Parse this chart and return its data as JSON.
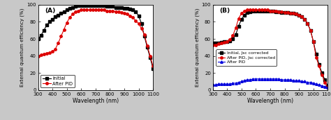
{
  "panel_A": {
    "label": "(A)",
    "initial_x": [
      300,
      320,
      340,
      360,
      380,
      400,
      420,
      440,
      460,
      480,
      500,
      520,
      540,
      560,
      580,
      600,
      620,
      640,
      660,
      680,
      700,
      720,
      740,
      760,
      780,
      800,
      820,
      840,
      860,
      880,
      900,
      920,
      940,
      960,
      980,
      1000,
      1020,
      1040,
      1060,
      1080,
      1100
    ],
    "initial_y": [
      60,
      64,
      70,
      76,
      80,
      83,
      86,
      88,
      90,
      92,
      94,
      96,
      97,
      98,
      99,
      99,
      99,
      99,
      99,
      99,
      99,
      99,
      99,
      99,
      98,
      98,
      98,
      97,
      97,
      97,
      96,
      96,
      95,
      94,
      92,
      87,
      78,
      63,
      50,
      38,
      25
    ],
    "after_pid_x": [
      300,
      320,
      340,
      360,
      380,
      400,
      420,
      440,
      460,
      480,
      500,
      520,
      540,
      560,
      580,
      600,
      620,
      640,
      660,
      680,
      700,
      720,
      740,
      760,
      780,
      800,
      820,
      840,
      860,
      880,
      900,
      920,
      940,
      960,
      980,
      1000,
      1020,
      1040,
      1060,
      1080,
      1100
    ],
    "after_pid_y": [
      40,
      41,
      42,
      43,
      44,
      45,
      48,
      55,
      63,
      71,
      79,
      85,
      89,
      92,
      93,
      94,
      94,
      94,
      94,
      94,
      94,
      94,
      94,
      94,
      93,
      93,
      93,
      92,
      92,
      91,
      90,
      89,
      87,
      85,
      81,
      78,
      72,
      65,
      52,
      40,
      28
    ],
    "xlabel": "Wavelength (nm)",
    "ylabel": "External quantum efficiency (%)",
    "xlim": [
      300,
      1100
    ],
    "ylim": [
      0,
      100
    ],
    "xticks": [
      300,
      400,
      500,
      600,
      700,
      800,
      900,
      1000,
      1100
    ],
    "yticks": [
      0,
      20,
      40,
      60,
      80,
      100
    ],
    "legend_initial": "Initial",
    "legend_after_pid": "After PID"
  },
  "panel_B": {
    "label": "(B)",
    "initial_jsc_x": [
      300,
      320,
      340,
      360,
      380,
      400,
      420,
      440,
      460,
      480,
      500,
      520,
      540,
      560,
      580,
      600,
      620,
      640,
      660,
      680,
      700,
      720,
      740,
      760,
      780,
      800,
      820,
      840,
      860,
      880,
      900,
      920,
      940,
      960,
      980,
      1000,
      1020,
      1040,
      1060,
      1080,
      1100
    ],
    "initial_jsc_y": [
      55,
      55,
      55,
      56,
      57,
      57,
      58,
      60,
      65,
      75,
      83,
      88,
      91,
      92,
      93,
      93,
      93,
      93,
      93,
      93,
      93,
      93,
      92,
      92,
      91,
      91,
      91,
      90,
      90,
      89,
      88,
      86,
      83,
      78,
      70,
      57,
      42,
      30,
      20,
      12,
      5
    ],
    "after_pid_jsc_x": [
      300,
      320,
      340,
      360,
      380,
      400,
      420,
      440,
      460,
      480,
      500,
      520,
      540,
      560,
      580,
      600,
      620,
      640,
      660,
      680,
      700,
      720,
      740,
      760,
      780,
      800,
      820,
      840,
      860,
      880,
      900,
      920,
      940,
      960,
      980,
      1000,
      1020,
      1040,
      1060,
      1080,
      1100
    ],
    "after_pid_jsc_y": [
      53,
      53,
      54,
      55,
      56,
      57,
      59,
      64,
      73,
      84,
      90,
      93,
      94,
      94,
      94,
      94,
      94,
      94,
      94,
      94,
      93,
      93,
      93,
      92,
      92,
      91,
      91,
      90,
      90,
      89,
      88,
      86,
      83,
      78,
      70,
      57,
      38,
      28,
      18,
      9,
      3
    ],
    "after_pid_x": [
      300,
      320,
      340,
      360,
      380,
      400,
      420,
      440,
      460,
      480,
      500,
      520,
      540,
      560,
      580,
      600,
      620,
      640,
      660,
      680,
      700,
      720,
      740,
      760,
      780,
      800,
      820,
      840,
      860,
      880,
      900,
      920,
      940,
      960,
      980,
      1000,
      1020,
      1040,
      1060,
      1080,
      1100
    ],
    "after_pid_y": [
      6,
      6,
      7,
      7,
      7,
      7,
      7,
      8,
      8,
      9,
      10,
      11,
      12,
      12,
      13,
      13,
      13,
      13,
      13,
      13,
      13,
      13,
      13,
      13,
      12,
      12,
      12,
      12,
      11,
      11,
      11,
      10,
      10,
      9,
      9,
      8,
      7,
      6,
      5,
      4,
      3
    ],
    "xlabel": "Wavelength (nm)",
    "ylabel": "External quantum efficiency (%)",
    "xlim": [
      300,
      1100
    ],
    "ylim": [
      0,
      100
    ],
    "xticks": [
      300,
      400,
      500,
      600,
      700,
      800,
      900,
      1000,
      1100
    ],
    "yticks": [
      0,
      20,
      40,
      60,
      80,
      100
    ],
    "legend_initial_jsc": "Initial, Jsc corrected",
    "legend_after_pid_jsc": "After PID, Jsc corrected",
    "legend_after_pid": "After PID"
  },
  "colors": {
    "black": "#000000",
    "red": "#dd0000",
    "blue": "#0000dd"
  },
  "plot_bg": "#ffffff",
  "figure_bg": "#c8c8c8"
}
